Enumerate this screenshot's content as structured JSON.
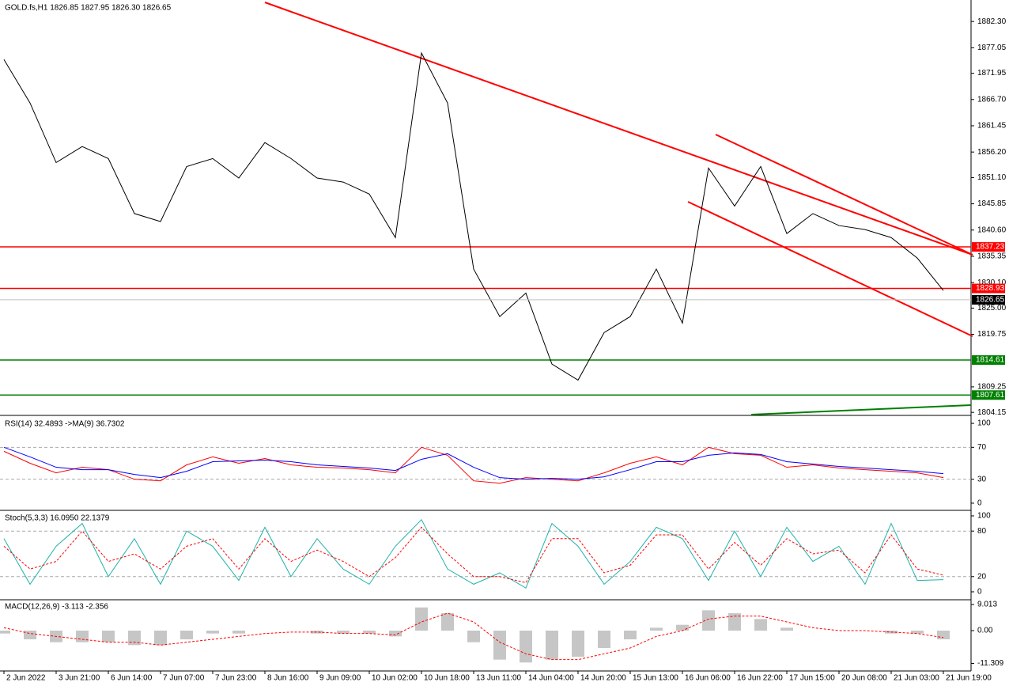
{
  "chart_data": [
    {
      "type": "line",
      "title": "GOLD.fs,H1  1826.85 1827.95 1826.30 1826.65",
      "color": "#000000",
      "categories": [
        "2 Jun 2022",
        null,
        "3 Jun 21:00",
        null,
        "6 Jun 14:00",
        null,
        "7 Jun 07:00",
        null,
        "7 Jun 23:00",
        null,
        "8 Jun 16:00",
        null,
        "9 Jun 09:00",
        null,
        "10 Jun 02:00",
        null,
        "10 Jun 18:00",
        null,
        "13 Jun 11:00",
        null,
        "14 Jun 04:00",
        null,
        "14 Jun 20:00",
        null,
        "15 Jun 13:00",
        null,
        "16 Jun 06:00",
        null,
        "16 Jun 22:00",
        null,
        "17 Jun 15:00",
        null,
        "20 Jun 08:00",
        null,
        "21 Jun 03:00",
        null,
        "21 Jun 19:00"
      ],
      "values": [
        1874.7,
        1866.0,
        1854.1,
        1857.3,
        1854.9,
        1843.9,
        1842.3,
        1853.3,
        1854.9,
        1851.0,
        1858.1,
        1854.9,
        1851.0,
        1850.2,
        1847.8,
        1839.1,
        1876.0,
        1866.0,
        1832.8,
        1823.3,
        1828.0,
        1813.8,
        1810.6,
        1820.1,
        1823.3,
        1832.8,
        1822.0,
        1853.0,
        1845.4,
        1853.3,
        1839.9,
        1843.9,
        1841.5,
        1840.7,
        1839.1,
        1835.0,
        1828.5
      ],
      "ylim": [
        1803.7,
        1886.6
      ],
      "yticks": [
        {
          "value": 1882.3,
          "label": "1882.30"
        },
        1877.05,
        1871.95,
        {
          "value": 1866.7,
          "label": "1866.70"
        },
        1861.45,
        {
          "value": 1856.2,
          "label": "1856.20"
        },
        {
          "value": 1851.1,
          "label": "1851.10"
        },
        1845.85,
        {
          "value": 1840.6,
          "label": "1840.60"
        },
        1835.35,
        {
          "value": 1830.1,
          "label": "1830.10"
        },
        {
          "value": 1825.0,
          "label": "1825.00"
        },
        1819.75,
        1809.25,
        1804.15
      ],
      "levels": [
        {
          "value": 1837.23,
          "color": "#ff0000"
        },
        {
          "value": 1828.93,
          "color": "#ff0000"
        },
        {
          "value": 1814.61,
          "color": "#008000"
        },
        {
          "value": 1807.61,
          "color": "#008000"
        }
      ],
      "last_price": 1826.65
    },
    {
      "type": "line",
      "title": "RSI(14) 32.4893  ->MA(9) 36.7302",
      "series": [
        {
          "color": "#ff0000",
          "values": [
            65,
            50,
            38,
            45,
            42,
            30,
            28,
            48,
            58,
            50,
            56,
            48,
            45,
            44,
            42,
            38,
            70,
            60,
            28,
            25,
            32,
            30,
            28,
            38,
            50,
            58,
            48,
            70,
            62,
            60,
            45,
            48,
            44,
            42,
            40,
            38,
            32
          ]
        },
        {
          "color": "#0000ff",
          "values": [
            70,
            58,
            45,
            42,
            42,
            36,
            32,
            40,
            52,
            53,
            54,
            52,
            48,
            46,
            44,
            41,
            55,
            62,
            45,
            32,
            30,
            31,
            30,
            33,
            42,
            52,
            52,
            60,
            63,
            61,
            52,
            49,
            46,
            44,
            42,
            40,
            37
          ]
        }
      ],
      "ylim": [
        -7,
        108
      ],
      "yticks": [
        100,
        70,
        30,
        0
      ],
      "levels": [
        70,
        30
      ]
    },
    {
      "type": "line",
      "title": "Stoch(5,3,3) 16.0950 22.1379",
      "series": [
        {
          "color": "#20b2aa",
          "dashed": false,
          "values": [
            70,
            10,
            60,
            90,
            20,
            70,
            10,
            80,
            60,
            15,
            85,
            20,
            70,
            30,
            10,
            60,
            95,
            30,
            10,
            25,
            5,
            90,
            60,
            10,
            40,
            85,
            70,
            15,
            80,
            20,
            85,
            40,
            60,
            10,
            90,
            15,
            16
          ]
        },
        {
          "color": "#ff0000",
          "dashed": true,
          "values": [
            60,
            30,
            40,
            80,
            40,
            50,
            30,
            60,
            70,
            30,
            70,
            40,
            55,
            40,
            20,
            45,
            85,
            50,
            20,
            20,
            12,
            70,
            70,
            25,
            35,
            75,
            75,
            30,
            65,
            35,
            70,
            50,
            55,
            25,
            75,
            30,
            22
          ]
        }
      ],
      "ylim": [
        -9.4,
        105.2
      ],
      "yticks": [
        100,
        80,
        20,
        0
      ],
      "levels": [
        80,
        20
      ]
    },
    {
      "type": "macd",
      "title": "MACD(12,26,9) -3.113 -2.356",
      "series": [
        {
          "type": "bar",
          "color": "#a0a0a0",
          "values": [
            -1,
            -3,
            -4,
            -4,
            -4,
            -5,
            -5,
            -3,
            -1,
            -1,
            0,
            0,
            -1,
            -1,
            -1,
            -2,
            8,
            6,
            -4,
            -10,
            -11,
            -10,
            -9,
            -6,
            -3,
            1,
            2,
            7,
            6,
            4,
            1,
            0,
            0,
            0,
            -1,
            -1,
            -3
          ]
        },
        {
          "type": "line",
          "color": "#ff0000",
          "dashed": true,
          "values": [
            1,
            -1,
            -2,
            -3,
            -4,
            -4,
            -5,
            -4,
            -3,
            -2,
            -1,
            -0.5,
            -0.5,
            -1,
            -1,
            -1.5,
            3,
            6,
            3,
            -4,
            -8,
            -10,
            -10,
            -8,
            -6,
            -2,
            0,
            4,
            5,
            5,
            3,
            1,
            0,
            0,
            -0.5,
            -1,
            -2.4
          ]
        }
      ],
      "ylim": [
        -13.1,
        10.1
      ],
      "yticks": [
        9.013,
        {
          "value": 0,
          "label": "0.00"
        },
        -11.309
      ]
    }
  ]
}
